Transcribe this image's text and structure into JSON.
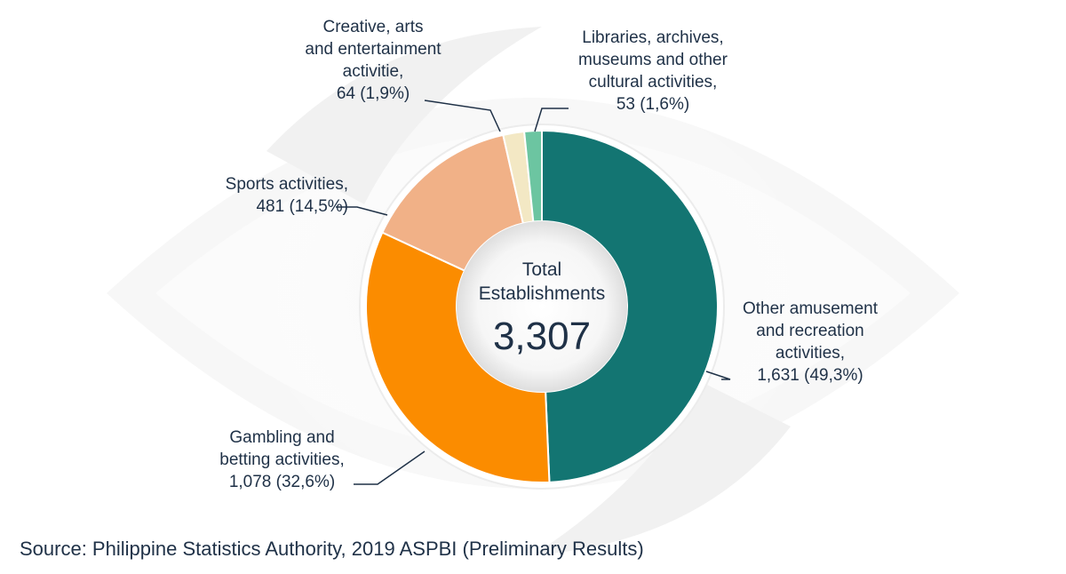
{
  "center": {
    "caption_line1": "Total",
    "caption_line2": "Establishments",
    "total": "3,307"
  },
  "source": "Source: Philippine Statistics Authority, 2019 ASPBI (Preliminary Results)",
  "chart_data": {
    "type": "pie",
    "donut": true,
    "total": 3307,
    "slices": [
      {
        "key": "other",
        "lines": [
          "Other amusement",
          "and recreation",
          "activities,",
          "1,631 (49,3%)"
        ],
        "value": 1631,
        "percent": 49.3,
        "color": "#137572"
      },
      {
        "key": "gambling",
        "lines": [
          "Gambling and",
          "betting activities,",
          "1,078 (32,6%)"
        ],
        "value": 1078,
        "percent": 32.6,
        "color": "#fb8c00"
      },
      {
        "key": "sports",
        "lines": [
          "Sports activities,",
          "481 (14,5%)"
        ],
        "value": 481,
        "percent": 14.5,
        "color": "#f1b187"
      },
      {
        "key": "creative",
        "lines": [
          "Creative, arts",
          "and entertainment",
          "activitie,",
          "64 (1,9%)"
        ],
        "value": 64,
        "percent": 1.9,
        "color": "#f3e8c4"
      },
      {
        "key": "libraries",
        "lines": [
          "Libraries, archives,",
          "museums and other",
          "cultural activities,",
          "53 (1,6%)"
        ],
        "value": 53,
        "percent": 1.6,
        "color": "#6cc5a1"
      }
    ]
  }
}
